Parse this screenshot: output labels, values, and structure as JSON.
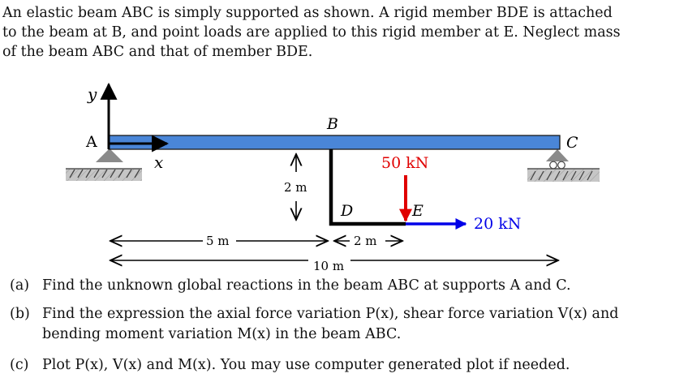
{
  "intro": {
    "line1": "An elastic beam ABC is simply supported as shown. A rigid member BDE is attached",
    "line2": "to the beam at B, and point loads are applied to this rigid member at E. Neglect mass",
    "line3": "of the beam ABC and that of member BDE."
  },
  "diagram": {
    "labels": {
      "y_axis": "y",
      "x_axis": "x",
      "point_a": "A",
      "point_b": "B",
      "point_c": "C",
      "point_d": "D",
      "point_e": "E"
    },
    "loads": {
      "vertical": "50 kN",
      "horizontal": "20 kN"
    },
    "dimensions": {
      "bd_height": "2 m",
      "ab_length": "5 m",
      "de_length": "2 m",
      "ac_length": "10 m"
    },
    "colors": {
      "beam": "#4a86d8",
      "vertical_load": "#e00000",
      "horizontal_load": "#0000e8",
      "support": "#888888",
      "ground_hatch": "#bbbbbb"
    }
  },
  "questions": {
    "a": {
      "tag": "(a)",
      "text": "Find the unknown global reactions in the beam ABC at supports A and C."
    },
    "b": {
      "tag": "(b)",
      "line1": "Find the expression the axial force variation P(x), shear force variation V(x) and",
      "line2": "bending moment variation M(x) in the beam ABC."
    },
    "c": {
      "tag": "(c)",
      "text": "Plot P(x), V(x) and M(x). You may use computer generated plot if needed."
    }
  }
}
